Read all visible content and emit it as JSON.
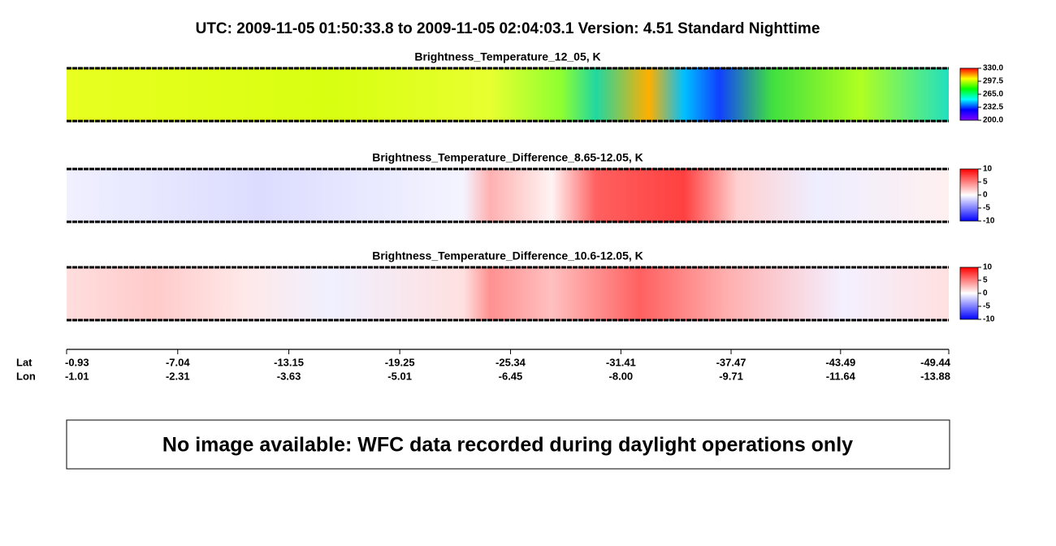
{
  "title": "UTC:  2009-11-05   01:50:33.8  to  2009-11-05   02:04:03.1    Version: 4.51  Standard Nighttime",
  "chart_data": [
    {
      "type": "heatmap",
      "title": "Brightness_Temperature_12_05, K",
      "colormap": [
        "#8000ff",
        "#0000ff",
        "#00ffff",
        "#00ff00",
        "#ffff00",
        "#ff0000"
      ],
      "ylim": [
        200,
        330
      ],
      "yticks": [
        {
          "value": 200,
          "label": "200.0"
        },
        {
          "value": 232.5,
          "label": "232.5"
        },
        {
          "value": 265,
          "label": "265.0"
        },
        {
          "value": 297.5,
          "label": "297.5"
        },
        {
          "value": 330,
          "label": "330.0"
        }
      ]
    },
    {
      "type": "heatmap",
      "title": "Brightness_Temperature_Difference_8.65-12.05, K",
      "colormap": [
        "#0000ff",
        "#ffffff",
        "#ff0000"
      ],
      "ylim": [
        -10,
        10
      ],
      "yticks": [
        -10,
        -5,
        0,
        5,
        10
      ]
    },
    {
      "type": "heatmap",
      "title": "Brightness_Temperature_Difference_10.6-12.05, K",
      "colormap": [
        "#0000ff",
        "#ffffff",
        "#ff0000"
      ],
      "ylim": [
        -10,
        10
      ],
      "yticks": [
        -10,
        -5,
        0,
        5,
        10
      ]
    }
  ],
  "axis": {
    "lat_label": "Lat",
    "lon_label": "Lon",
    "xlim": [
      -0.93,
      -49.44
    ],
    "lat_ticks": [
      -0.93,
      -7.04,
      -13.15,
      -19.25,
      -25.34,
      -31.41,
      -37.47,
      -43.49,
      -49.44
    ],
    "lon_ticks": [
      -1.01,
      -2.31,
      -3.63,
      -5.01,
      -6.45,
      {
        "value": -8,
        "label": "-8.00"
      },
      -9.71,
      -11.64,
      -13.88
    ]
  },
  "notice": "No image available: WFC data recorded during daylight operations only"
}
